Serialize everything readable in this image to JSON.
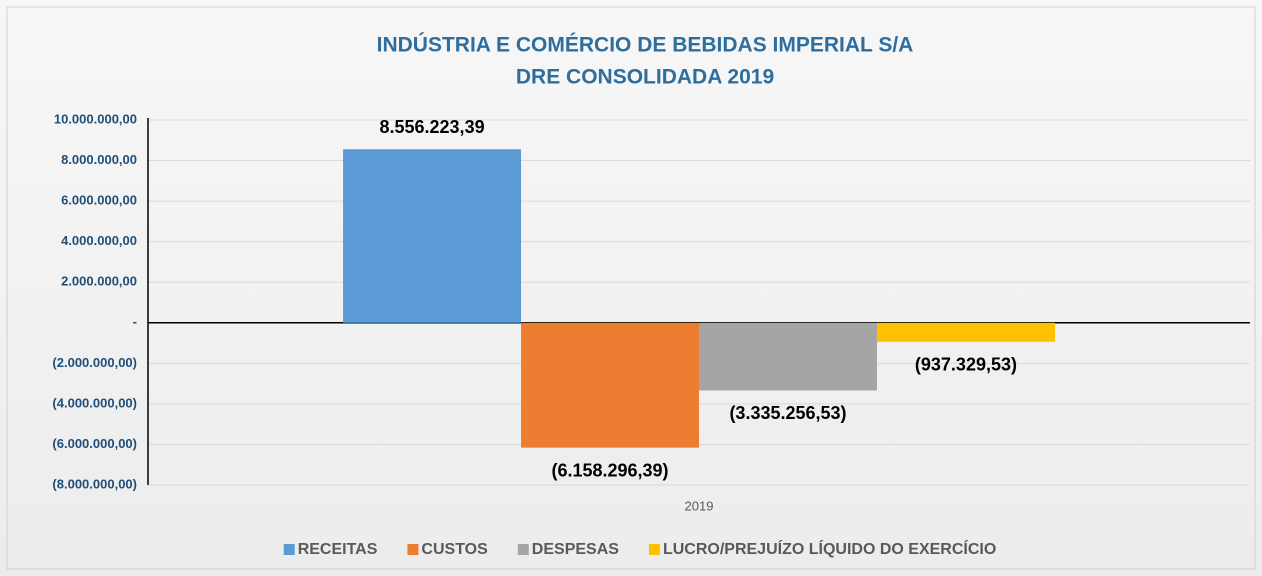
{
  "chart_data": {
    "type": "bar",
    "title": [
      "INDÚSTRIA E COMÉRCIO DE BEBIDAS IMPERIAL S/A",
      "DRE CONSOLIDADA 2019"
    ],
    "categories": [
      "2019"
    ],
    "series": [
      {
        "name": "RECEITAS",
        "color": "#5b9bd5",
        "values": [
          8556223.39
        ],
        "value_labels": [
          "8.556.223,39"
        ]
      },
      {
        "name": "CUSTOS",
        "color": "#ed7d31",
        "values": [
          -6158296.39
        ],
        "value_labels": [
          "(6.158.296,39)"
        ]
      },
      {
        "name": "DESPESAS",
        "color": "#a5a5a5",
        "values": [
          -3335256.53
        ],
        "value_labels": [
          "(3.335.256,53)"
        ]
      },
      {
        "name": "LUCRO/PREJUÍZO LÍQUIDO DO EXERCÍCIO",
        "color": "#ffc000",
        "values": [
          -937329.53
        ],
        "value_labels": [
          "(937.329,53)"
        ]
      }
    ],
    "ylim": [
      -8000000,
      10000000
    ],
    "yticks": [
      {
        "value": -8000000,
        "label": "(8.000.000,00)"
      },
      {
        "value": -6000000,
        "label": "(6.000.000,00)"
      },
      {
        "value": -4000000,
        "label": "(4.000.000,00)"
      },
      {
        "value": -2000000,
        "label": "(2.000.000,00)"
      },
      {
        "value": 0,
        "label": "-"
      },
      {
        "value": 2000000,
        "label": "2.000.000,00"
      },
      {
        "value": 4000000,
        "label": "4.000.000,00"
      },
      {
        "value": 6000000,
        "label": "6.000.000,00"
      },
      {
        "value": 8000000,
        "label": "8.000.000,00"
      },
      {
        "value": 10000000,
        "label": "10.000.000,00"
      }
    ],
    "grid": true,
    "legend": "bottom"
  }
}
